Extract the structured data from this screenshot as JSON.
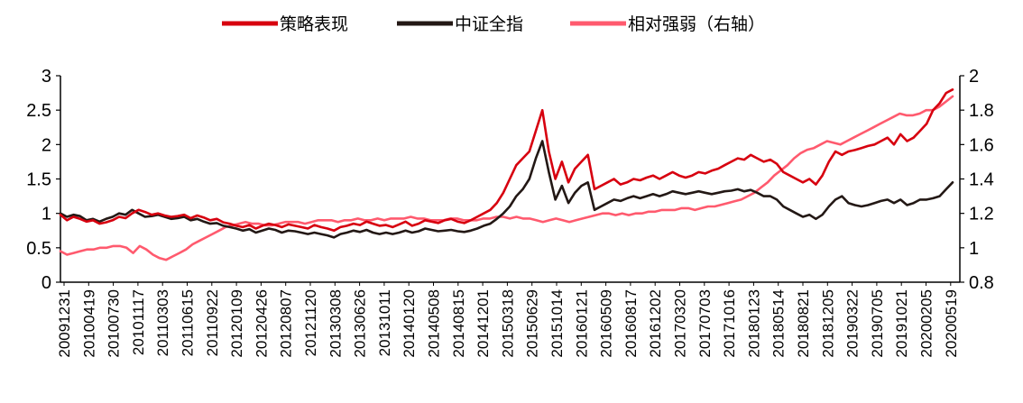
{
  "chart_data": {
    "type": "line",
    "title": "",
    "grid": false,
    "legend_position": "top",
    "x_tick_labels": [
      "20091231",
      "20100419",
      "20100730",
      "20101117",
      "20110303",
      "20110615",
      "20110922",
      "20120109",
      "20120426",
      "20120807",
      "20121120",
      "20130308",
      "20130626",
      "20131011",
      "20140120",
      "20140508",
      "20140815",
      "20141201",
      "20150318",
      "20150629",
      "20151014",
      "20160121",
      "20160509",
      "20160817",
      "20161202",
      "20170320",
      "20170703",
      "20171016",
      "20180123",
      "20180514",
      "20180821",
      "20181205",
      "20190322",
      "20190705",
      "20191021",
      "20200205",
      "20200519"
    ],
    "y_left": {
      "min": 0,
      "max": 3,
      "ticks": [
        0,
        0.5,
        1,
        1.5,
        2,
        2.5,
        3
      ],
      "tick_labels": [
        "0",
        "0.5",
        "1",
        "1.5",
        "2",
        "2.5",
        "3"
      ]
    },
    "y_right": {
      "min": 0.8,
      "max": 2,
      "ticks": [
        0.8,
        1,
        1.2,
        1.4,
        1.6,
        1.8,
        2
      ],
      "tick_labels": [
        "0.8",
        "1",
        "1.2",
        "1.4",
        "1.6",
        "1.8",
        "2"
      ]
    },
    "series": [
      {
        "name": "策略表现",
        "axis": "left",
        "color": "#d7000f",
        "values": [
          0.98,
          0.9,
          0.95,
          0.92,
          0.88,
          0.9,
          0.85,
          0.87,
          0.9,
          0.95,
          0.93,
          1.0,
          1.05,
          1.02,
          0.98,
          1.0,
          0.97,
          0.95,
          0.96,
          0.98,
          0.93,
          0.97,
          0.94,
          0.9,
          0.92,
          0.87,
          0.85,
          0.82,
          0.8,
          0.83,
          0.78,
          0.82,
          0.85,
          0.83,
          0.8,
          0.84,
          0.82,
          0.8,
          0.78,
          0.83,
          0.8,
          0.78,
          0.75,
          0.8,
          0.82,
          0.85,
          0.83,
          0.88,
          0.85,
          0.82,
          0.83,
          0.8,
          0.84,
          0.88,
          0.82,
          0.85,
          0.9,
          0.88,
          0.86,
          0.9,
          0.92,
          0.88,
          0.86,
          0.9,
          0.95,
          1.0,
          1.05,
          1.15,
          1.3,
          1.5,
          1.7,
          1.8,
          1.9,
          2.2,
          2.5,
          1.9,
          1.5,
          1.75,
          1.45,
          1.65,
          1.75,
          1.85,
          1.35,
          1.4,
          1.45,
          1.5,
          1.42,
          1.45,
          1.5,
          1.48,
          1.52,
          1.55,
          1.5,
          1.55,
          1.6,
          1.55,
          1.52,
          1.55,
          1.6,
          1.58,
          1.62,
          1.65,
          1.7,
          1.75,
          1.8,
          1.78,
          1.85,
          1.8,
          1.75,
          1.78,
          1.72,
          1.6,
          1.55,
          1.5,
          1.45,
          1.5,
          1.42,
          1.55,
          1.75,
          1.9,
          1.85,
          1.9,
          1.92,
          1.95,
          1.98,
          2.0,
          2.05,
          2.1,
          2.0,
          2.15,
          2.05,
          2.1,
          2.2,
          2.3,
          2.5,
          2.6,
          2.75,
          2.8
        ]
      },
      {
        "name": "中证全指",
        "axis": "left",
        "color": "#231815",
        "values": [
          1.0,
          0.95,
          0.98,
          0.96,
          0.9,
          0.92,
          0.88,
          0.92,
          0.95,
          1.0,
          0.98,
          1.05,
          1.0,
          0.95,
          0.96,
          0.98,
          0.95,
          0.92,
          0.93,
          0.95,
          0.9,
          0.92,
          0.88,
          0.85,
          0.86,
          0.82,
          0.8,
          0.78,
          0.75,
          0.77,
          0.72,
          0.75,
          0.78,
          0.76,
          0.72,
          0.75,
          0.74,
          0.72,
          0.7,
          0.72,
          0.7,
          0.68,
          0.65,
          0.7,
          0.72,
          0.75,
          0.73,
          0.76,
          0.72,
          0.7,
          0.72,
          0.7,
          0.72,
          0.75,
          0.72,
          0.74,
          0.78,
          0.76,
          0.74,
          0.75,
          0.76,
          0.74,
          0.73,
          0.75,
          0.78,
          0.82,
          0.85,
          0.92,
          1.0,
          1.1,
          1.25,
          1.35,
          1.5,
          1.8,
          2.05,
          1.6,
          1.2,
          1.4,
          1.15,
          1.3,
          1.4,
          1.45,
          1.05,
          1.1,
          1.15,
          1.2,
          1.18,
          1.22,
          1.25,
          1.22,
          1.25,
          1.28,
          1.25,
          1.28,
          1.32,
          1.3,
          1.28,
          1.3,
          1.32,
          1.3,
          1.28,
          1.3,
          1.32,
          1.33,
          1.35,
          1.32,
          1.34,
          1.3,
          1.25,
          1.25,
          1.2,
          1.1,
          1.05,
          1.0,
          0.95,
          0.98,
          0.92,
          0.98,
          1.1,
          1.2,
          1.25,
          1.15,
          1.12,
          1.1,
          1.12,
          1.15,
          1.18,
          1.2,
          1.15,
          1.2,
          1.12,
          1.15,
          1.2,
          1.2,
          1.22,
          1.25,
          1.35,
          1.45
        ]
      },
      {
        "name": "相对强弱（右轴）",
        "axis": "right",
        "color": "#ff5a6e",
        "values": [
          0.98,
          0.96,
          0.97,
          0.98,
          0.99,
          0.99,
          1.0,
          1.0,
          1.01,
          1.01,
          1.0,
          0.97,
          1.01,
          0.99,
          0.96,
          0.94,
          0.93,
          0.95,
          0.97,
          0.99,
          1.02,
          1.04,
          1.06,
          1.08,
          1.1,
          1.12,
          1.13,
          1.14,
          1.15,
          1.14,
          1.14,
          1.13,
          1.13,
          1.14,
          1.15,
          1.15,
          1.15,
          1.14,
          1.15,
          1.16,
          1.16,
          1.16,
          1.15,
          1.16,
          1.16,
          1.17,
          1.16,
          1.16,
          1.17,
          1.16,
          1.17,
          1.17,
          1.17,
          1.18,
          1.17,
          1.17,
          1.16,
          1.16,
          1.16,
          1.17,
          1.17,
          1.16,
          1.16,
          1.16,
          1.17,
          1.17,
          1.18,
          1.18,
          1.17,
          1.18,
          1.17,
          1.17,
          1.16,
          1.15,
          1.16,
          1.17,
          1.16,
          1.15,
          1.16,
          1.17,
          1.18,
          1.19,
          1.2,
          1.2,
          1.19,
          1.2,
          1.19,
          1.2,
          1.2,
          1.21,
          1.21,
          1.22,
          1.22,
          1.22,
          1.23,
          1.23,
          1.22,
          1.23,
          1.24,
          1.24,
          1.25,
          1.26,
          1.27,
          1.28,
          1.3,
          1.32,
          1.35,
          1.38,
          1.42,
          1.45,
          1.48,
          1.52,
          1.55,
          1.57,
          1.58,
          1.6,
          1.62,
          1.61,
          1.6,
          1.62,
          1.64,
          1.66,
          1.68,
          1.7,
          1.72,
          1.74,
          1.76,
          1.78,
          1.77,
          1.77,
          1.78,
          1.8,
          1.8,
          1.82,
          1.85,
          1.88
        ]
      }
    ]
  }
}
